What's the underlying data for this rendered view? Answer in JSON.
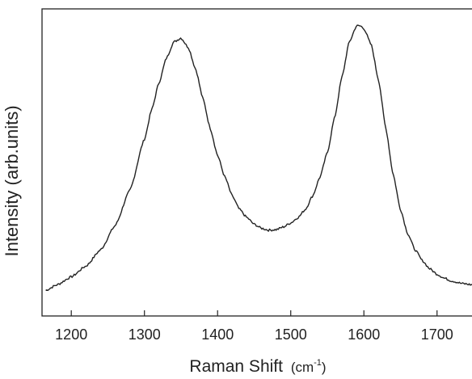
{
  "chart_data": {
    "type": "line",
    "xlabel": "Raman Shift",
    "xlabel_unit": "(cm",
    "xlabel_unit_sup": "-1",
    "xlabel_unit_close": ")",
    "ylabel": "Intensity (arb.units)",
    "xlim": [
      1160,
      1750
    ],
    "ylim": [
      0,
      1.0
    ],
    "x_ticks": [
      1200,
      1300,
      1400,
      1500,
      1600,
      1700
    ],
    "x_tick_labels": [
      "1200",
      "1300",
      "1400",
      "1500",
      "1600",
      "1700"
    ],
    "y_ticks_labeled": false,
    "grid": false,
    "series": [
      {
        "x": [
          1165,
          1180,
          1200,
          1220,
          1240,
          1260,
          1280,
          1300,
          1310,
          1320,
          1330,
          1340,
          1350,
          1360,
          1370,
          1380,
          1390,
          1400,
          1410,
          1420,
          1430,
          1440,
          1450,
          1460,
          1470,
          1480,
          1490,
          1500,
          1510,
          1520,
          1530,
          1540,
          1550,
          1560,
          1570,
          1580,
          1590,
          1595,
          1600,
          1610,
          1620,
          1630,
          1640,
          1650,
          1660,
          1670,
          1680,
          1690,
          1700,
          1710,
          1720,
          1735,
          1750
        ],
        "y": [
          0.02,
          0.04,
          0.07,
          0.11,
          0.17,
          0.26,
          0.39,
          0.58,
          0.69,
          0.79,
          0.88,
          0.94,
          0.955,
          0.92,
          0.84,
          0.73,
          0.62,
          0.52,
          0.44,
          0.37,
          0.32,
          0.29,
          0.265,
          0.25,
          0.243,
          0.245,
          0.255,
          0.27,
          0.29,
          0.32,
          0.37,
          0.44,
          0.53,
          0.66,
          0.81,
          0.94,
          1.0,
          1.0,
          0.99,
          0.93,
          0.8,
          0.62,
          0.45,
          0.32,
          0.23,
          0.17,
          0.13,
          0.1,
          0.08,
          0.065,
          0.055,
          0.045,
          0.04
        ]
      }
    ]
  }
}
